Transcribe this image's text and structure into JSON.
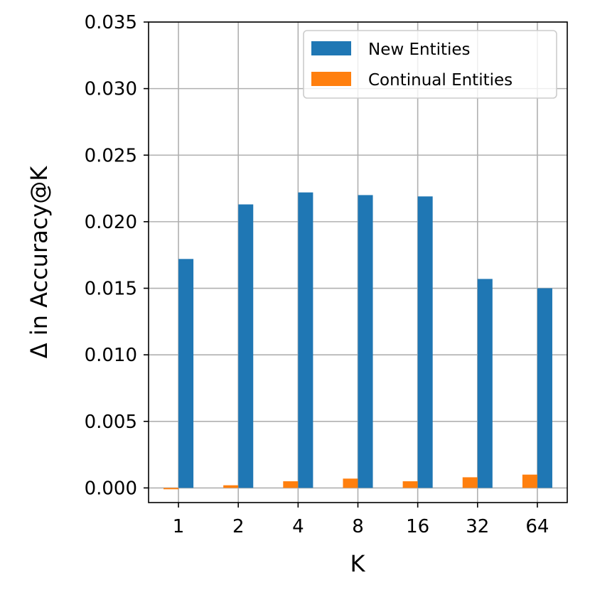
{
  "chart_data": {
    "type": "bar",
    "title": "",
    "xlabel": "K",
    "ylabel": "Δ in Accuracy@K",
    "categories": [
      "1",
      "2",
      "4",
      "8",
      "16",
      "32",
      "64"
    ],
    "series": [
      {
        "name": "New Entities",
        "color": "#1f77b4",
        "values": [
          0.0172,
          0.0213,
          0.0222,
          0.022,
          0.0219,
          0.0157,
          0.015
        ]
      },
      {
        "name": "Continual Entities",
        "color": "#ff7f0e",
        "values": [
          -0.0001,
          0.0002,
          0.0005,
          0.0007,
          0.0005,
          0.0008,
          0.001
        ]
      }
    ],
    "ylim": [
      -0.0011,
      0.035
    ],
    "yticks": [
      "0.000",
      "0.005",
      "0.010",
      "0.015",
      "0.020",
      "0.025",
      "0.030",
      "0.035"
    ],
    "grid": true,
    "legend_position": "top-right"
  }
}
